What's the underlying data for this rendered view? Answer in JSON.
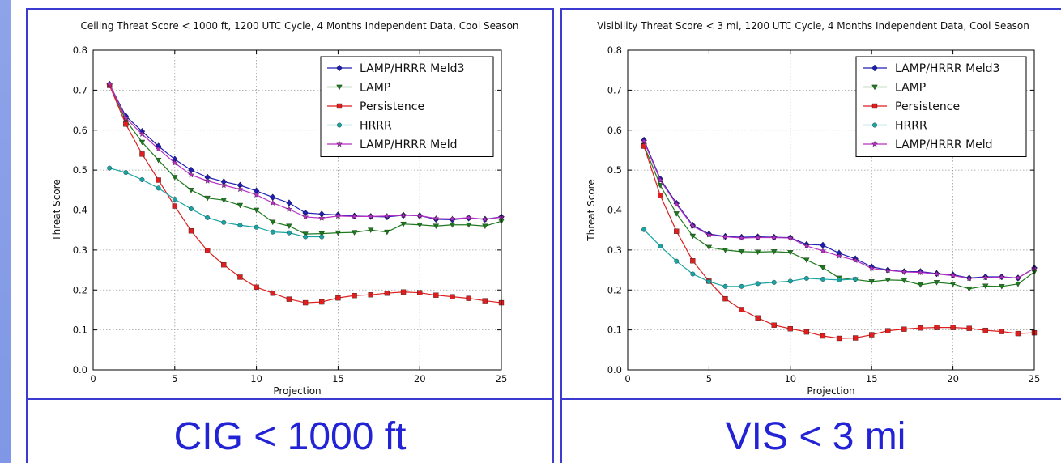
{
  "chart_data": [
    {
      "type": "line",
      "title": "Ceiling Threat Score < 1000 ft, 1200 UTC Cycle, 4 Months Independent Data, Cool Season",
      "xlabel": "Projection",
      "ylabel": "Threat Score",
      "xlim": [
        0,
        25
      ],
      "ylim": [
        0.0,
        0.8
      ],
      "xticks": [
        "0",
        "5",
        "10",
        "15",
        "20",
        "25"
      ],
      "yticks": [
        "0.0",
        "0.1",
        "0.2",
        "0.3",
        "0.4",
        "0.5",
        "0.6",
        "0.7",
        "0.8"
      ],
      "grid": true,
      "legend_position": "top-right",
      "series": [
        {
          "name": "LAMP/HRRR Meld3",
          "color": "#1f1fb4",
          "marker": "diamond",
          "x": [
            1,
            2,
            3,
            4,
            5,
            6,
            7,
            8,
            9,
            10,
            11,
            12,
            13,
            14,
            15,
            16,
            17,
            18,
            19,
            20,
            21,
            22,
            23,
            24,
            25
          ],
          "values": [
            0.715,
            0.635,
            0.597,
            0.56,
            0.527,
            0.5,
            0.482,
            0.471,
            0.462,
            0.448,
            0.432,
            0.418,
            0.393,
            0.39,
            0.388,
            0.385,
            0.384,
            0.383,
            0.387,
            0.386,
            0.377,
            0.376,
            0.38,
            0.377,
            0.383
          ]
        },
        {
          "name": "LAMP",
          "color": "#1e7a1e",
          "marker": "triangle-down",
          "x": [
            1,
            2,
            3,
            4,
            5,
            6,
            7,
            8,
            9,
            10,
            11,
            12,
            13,
            14,
            15,
            16,
            17,
            18,
            19,
            20,
            21,
            22,
            23,
            24,
            25
          ],
          "values": [
            0.712,
            0.625,
            0.57,
            0.525,
            0.482,
            0.45,
            0.43,
            0.425,
            0.412,
            0.4,
            0.37,
            0.36,
            0.34,
            0.341,
            0.343,
            0.344,
            0.35,
            0.345,
            0.365,
            0.363,
            0.36,
            0.363,
            0.363,
            0.36,
            0.372
          ]
        },
        {
          "name": "Persistence",
          "color": "#dd1f1f",
          "marker": "square",
          "x": [
            1,
            2,
            3,
            4,
            5,
            6,
            7,
            8,
            9,
            10,
            11,
            12,
            13,
            14,
            15,
            16,
            17,
            18,
            19,
            20,
            21,
            22,
            23,
            24,
            25
          ],
          "values": [
            0.712,
            0.615,
            0.54,
            0.475,
            0.41,
            0.348,
            0.298,
            0.263,
            0.232,
            0.207,
            0.192,
            0.177,
            0.168,
            0.17,
            0.18,
            0.186,
            0.188,
            0.192,
            0.195,
            0.193,
            0.187,
            0.183,
            0.179,
            0.173,
            0.168
          ]
        },
        {
          "name": "HRRR",
          "color": "#1aa3a3",
          "marker": "circle",
          "x": [
            1,
            2,
            3,
            4,
            5,
            6,
            7,
            8,
            9,
            10,
            11,
            12,
            13,
            14
          ],
          "values": [
            0.505,
            0.494,
            0.476,
            0.455,
            0.427,
            0.403,
            0.381,
            0.369,
            0.362,
            0.357,
            0.345,
            0.343,
            0.333,
            0.333
          ]
        },
        {
          "name": "LAMP/HRRR Meld",
          "color": "#b82fc4",
          "marker": "star",
          "x": [
            1,
            2,
            3,
            4,
            5,
            6,
            7,
            8,
            9,
            10,
            11,
            12,
            13,
            14,
            15,
            16,
            17,
            18,
            19,
            20,
            21,
            22,
            23,
            24,
            25
          ],
          "values": [
            0.715,
            0.63,
            0.59,
            0.553,
            0.518,
            0.488,
            0.473,
            0.462,
            0.452,
            0.438,
            0.418,
            0.402,
            0.383,
            0.38,
            0.385,
            0.384,
            0.384,
            0.385,
            0.387,
            0.386,
            0.379,
            0.378,
            0.381,
            0.377,
            0.382
          ]
        }
      ]
    },
    {
      "type": "line",
      "title": "Visibility Threat Score < 3 mi, 1200 UTC Cycle, 4 Months Independent Data, Cool Season",
      "xlabel": "Projection",
      "ylabel": "Threat Score",
      "xlim": [
        0,
        25
      ],
      "ylim": [
        0.0,
        0.8
      ],
      "xticks": [
        "0",
        "5",
        "10",
        "15",
        "20",
        "25"
      ],
      "yticks": [
        "0.0",
        "0.1",
        "0.2",
        "0.3",
        "0.4",
        "0.5",
        "0.6",
        "0.7",
        "0.8"
      ],
      "grid": true,
      "legend_position": "top-right",
      "series": [
        {
          "name": "LAMP/HRRR Meld3",
          "color": "#1f1fb4",
          "marker": "diamond",
          "x": [
            1,
            2,
            3,
            4,
            5,
            6,
            7,
            8,
            9,
            10,
            11,
            12,
            13,
            14,
            15,
            16,
            17,
            18,
            19,
            20,
            21,
            22,
            23,
            24,
            25
          ],
          "values": [
            0.575,
            0.478,
            0.417,
            0.362,
            0.34,
            0.334,
            0.332,
            0.333,
            0.332,
            0.331,
            0.314,
            0.312,
            0.292,
            0.278,
            0.258,
            0.25,
            0.246,
            0.246,
            0.241,
            0.238,
            0.23,
            0.233,
            0.233,
            0.23,
            0.255
          ]
        },
        {
          "name": "LAMP",
          "color": "#1e7a1e",
          "marker": "triangle-down",
          "x": [
            1,
            2,
            3,
            4,
            5,
            6,
            7,
            8,
            9,
            10,
            11,
            12,
            13,
            14,
            15,
            16,
            17,
            18,
            19,
            20,
            21,
            22,
            23,
            24,
            25
          ],
          "values": [
            0.562,
            0.462,
            0.391,
            0.335,
            0.307,
            0.3,
            0.296,
            0.295,
            0.296,
            0.294,
            0.275,
            0.256,
            0.23,
            0.226,
            0.221,
            0.225,
            0.224,
            0.213,
            0.219,
            0.215,
            0.203,
            0.21,
            0.209,
            0.215,
            0.245
          ]
        },
        {
          "name": "Persistence",
          "color": "#dd1f1f",
          "marker": "square",
          "x": [
            1,
            2,
            3,
            4,
            5,
            6,
            7,
            8,
            9,
            10,
            11,
            12,
            13,
            14,
            15,
            16,
            17,
            18,
            19,
            20,
            21,
            22,
            23,
            24,
            25
          ],
          "values": [
            0.56,
            0.437,
            0.347,
            0.273,
            0.222,
            0.178,
            0.151,
            0.13,
            0.112,
            0.103,
            0.095,
            0.085,
            0.079,
            0.08,
            0.088,
            0.098,
            0.102,
            0.105,
            0.106,
            0.106,
            0.104,
            0.099,
            0.096,
            0.091,
            0.093
          ]
        },
        {
          "name": "HRRR",
          "color": "#1aa3a3",
          "marker": "circle",
          "x": [
            1,
            2,
            3,
            4,
            5,
            6,
            7,
            8,
            9,
            10,
            11,
            12,
            13,
            14
          ],
          "values": [
            0.351,
            0.31,
            0.272,
            0.24,
            0.221,
            0.209,
            0.209,
            0.216,
            0.219,
            0.222,
            0.229,
            0.227,
            0.225,
            0.227
          ]
        },
        {
          "name": "LAMP/HRRR Meld",
          "color": "#b82fc4",
          "marker": "star",
          "x": [
            1,
            2,
            3,
            4,
            5,
            6,
            7,
            8,
            9,
            10,
            11,
            12,
            13,
            14,
            15,
            16,
            17,
            18,
            19,
            20,
            21,
            22,
            23,
            24,
            25
          ],
          "values": [
            0.572,
            0.475,
            0.414,
            0.36,
            0.338,
            0.333,
            0.33,
            0.331,
            0.331,
            0.33,
            0.31,
            0.298,
            0.285,
            0.274,
            0.254,
            0.249,
            0.245,
            0.244,
            0.24,
            0.236,
            0.229,
            0.231,
            0.232,
            0.23,
            0.254
          ]
        }
      ]
    }
  ],
  "captions": {
    "left": "CIG < 1000 ft",
    "right": "VIS < 3 mi"
  }
}
